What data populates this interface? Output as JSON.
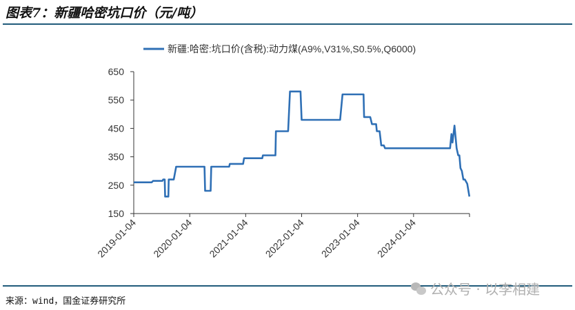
{
  "header": {
    "title": "图表7：新疆哈密坑口价（元/吨）"
  },
  "footer": {
    "source": "来源：wind，国金证券研究所",
    "watermark": "公众号 · 以李相建",
    "watermark_icon": "wechat-icon"
  },
  "chart_data": {
    "type": "line",
    "title": "",
    "xlabel": "",
    "ylabel": "",
    "ylim": [
      150,
      650
    ],
    "yticks": [
      "150",
      "250",
      "350",
      "450",
      "550",
      "650"
    ],
    "xticks": [
      "2019-01-04",
      "2020-01-04",
      "2021-01-04",
      "2022-01-04",
      "2023-01-04",
      "2024-01-04",
      ""
    ],
    "xlim": [
      "2019-01-04",
      "2025-01-04"
    ],
    "grid": false,
    "legend": "top",
    "color": "#2e6fb5",
    "series": [
      {
        "name": "新疆:哈密:坑口价(含税):动力煤(A9%,V31%,S0.5%,Q6000)",
        "x": [
          "2019-01-04",
          "2019-05-01",
          "2019-05-10",
          "2019-07-10",
          "2019-07-15",
          "2019-07-25",
          "2019-07-28",
          "2019-08-18",
          "2019-08-20",
          "2019-09-22",
          "2019-10-08",
          "2020-04-10",
          "2020-04-14",
          "2020-05-20",
          "2020-05-24",
          "2020-09-18",
          "2020-09-22",
          "2020-12-18",
          "2020-12-24",
          "2021-04-22",
          "2021-04-26",
          "2021-07-17",
          "2021-07-20",
          "2021-10-08",
          "2021-10-20",
          "2021-12-28",
          "2022-01-04",
          "2022-09-12",
          "2022-09-28",
          "2023-02-12",
          "2023-02-16",
          "2023-03-28",
          "2023-04-08",
          "2023-05-05",
          "2023-05-10",
          "2023-05-28",
          "2023-06-08",
          "2023-06-25",
          "2023-07-02",
          "2024-08-30",
          "2024-09-08",
          "2024-09-15",
          "2024-09-28",
          "2024-10-12",
          "2024-10-22",
          "2024-10-30",
          "2024-11-06",
          "2024-11-15",
          "2024-11-25",
          "2024-12-05",
          "2024-12-20",
          "2025-01-03"
        ],
        "values": [
          260,
          260,
          265,
          265,
          270,
          270,
          210,
          210,
          270,
          270,
          315,
          315,
          230,
          230,
          315,
          315,
          325,
          325,
          345,
          345,
          355,
          355,
          440,
          440,
          580,
          580,
          480,
          480,
          570,
          570,
          490,
          490,
          465,
          465,
          440,
          440,
          390,
          390,
          380,
          380,
          430,
          400,
          460,
          380,
          355,
          355,
          310,
          300,
          270,
          270,
          255,
          210
        ]
      }
    ]
  }
}
